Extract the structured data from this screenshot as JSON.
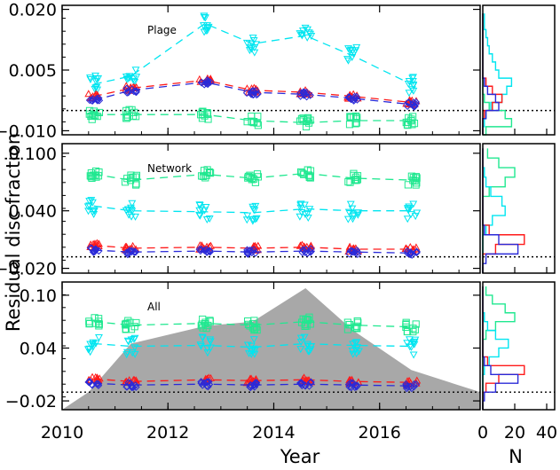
{
  "figure": {
    "ylabel": "Residual disc fraction",
    "xlabel": "Year",
    "hist_xlabel": "N",
    "x_ticks": [
      "2010",
      "2012",
      "2014",
      "2016"
    ],
    "hist_ticks": [
      "0",
      "20",
      "40"
    ]
  },
  "chart_data": [
    {
      "type": "scatter",
      "panel": "top",
      "label": "Plage",
      "title": "",
      "xlim": [
        2010,
        2017.9
      ],
      "ylim": [
        -0.011,
        0.021
      ],
      "yticks": [
        "0.020",
        "0.005",
        "−0.010"
      ],
      "ytick_values": [
        0.02,
        0.005,
        -0.01
      ],
      "reference_line": -0.005,
      "colors": {
        "cyan": "#00e5f0",
        "green": "#20e890",
        "red": "#ff1a1a",
        "blue": "#2a2ad8"
      },
      "series": [
        {
          "color": "cyan",
          "marker": "triangle-down",
          "x": [
            2010.6,
            2011.3,
            2012.7,
            2013.6,
            2014.6,
            2015.5,
            2016.6
          ],
          "y": [
            0.0015,
            0.0035,
            0.0165,
            0.0115,
            0.0135,
            0.0085,
            0.0015
          ]
        },
        {
          "color": "green",
          "marker": "square",
          "x": [
            2010.6,
            2011.3,
            2012.7,
            2013.6,
            2014.6,
            2015.5,
            2016.6
          ],
          "y": [
            -0.006,
            -0.006,
            -0.006,
            -0.0075,
            -0.008,
            -0.0075,
            -0.0075
          ]
        },
        {
          "color": "red",
          "marker": "triangle-up",
          "x": [
            2010.6,
            2011.3,
            2012.7,
            2013.6,
            2014.6,
            2015.5,
            2016.6
          ],
          "y": [
            -0.0015,
            0.0005,
            0.0025,
            0.0,
            -0.0005,
            -0.0015,
            -0.003
          ]
        },
        {
          "color": "blue",
          "marker": "diamond",
          "x": [
            2010.6,
            2011.3,
            2012.7,
            2013.6,
            2014.6,
            2015.5,
            2016.6
          ],
          "y": [
            -0.0025,
            0.0,
            0.002,
            -0.0005,
            -0.001,
            -0.002,
            -0.0035
          ]
        }
      ],
      "histogram": {
        "xlim": [
          0,
          45
        ],
        "bins": [
          -0.011,
          -0.009,
          -0.007,
          -0.005,
          -0.003,
          -0.001,
          0.001,
          0.003,
          0.005,
          0.007,
          0.009,
          0.011,
          0.013,
          0.015,
          0.017,
          0.019
        ],
        "series": [
          {
            "color": "green",
            "counts": [
              2,
              18,
              14,
              4,
              1,
              0,
              0,
              0,
              0,
              0,
              0,
              0,
              0,
              0,
              0
            ]
          },
          {
            "color": "cyan",
            "counts": [
              0,
              1,
              2,
              5,
              12,
              15,
              18,
              10,
              8,
              6,
              4,
              3,
              2,
              1,
              1
            ]
          },
          {
            "color": "red",
            "counts": [
              0,
              0,
              1,
              6,
              12,
              6,
              2,
              0,
              0,
              0,
              0,
              0,
              0,
              0,
              0
            ]
          },
          {
            "color": "blue",
            "counts": [
              0,
              0,
              2,
              10,
              8,
              3,
              1,
              0,
              0,
              0,
              0,
              0,
              0,
              0,
              0
            ]
          }
        ]
      }
    },
    {
      "type": "scatter",
      "panel": "middle",
      "label": "Network",
      "title": "",
      "xlim": [
        2010,
        2017.9
      ],
      "ylim": [
        -0.025,
        0.11
      ],
      "yticks": [
        "0.100",
        "0.040",
        "−0.020"
      ],
      "ytick_values": [
        0.1,
        0.04,
        -0.02
      ],
      "reference_line": -0.008,
      "colors": {
        "cyan": "#00e5f0",
        "green": "#20e890",
        "red": "#ff1a1a",
        "blue": "#2a2ad8"
      },
      "series": [
        {
          "color": "green",
          "marker": "square",
          "x": [
            2010.6,
            2011.3,
            2012.7,
            2013.6,
            2014.6,
            2015.5,
            2016.6
          ],
          "y": [
            0.078,
            0.072,
            0.078,
            0.074,
            0.079,
            0.074,
            0.072
          ]
        },
        {
          "color": "cyan",
          "marker": "triangle-down",
          "x": [
            2010.6,
            2011.3,
            2012.7,
            2013.6,
            2014.6,
            2015.5,
            2016.6
          ],
          "y": [
            0.045,
            0.04,
            0.039,
            0.038,
            0.042,
            0.04,
            0.04
          ]
        },
        {
          "color": "red",
          "marker": "triangle-up",
          "x": [
            2010.6,
            2011.3,
            2012.7,
            2013.6,
            2014.6,
            2015.5,
            2016.6
          ],
          "y": [
            0.004,
            0.001,
            0.002,
            0.001,
            0.002,
            0.0,
            0.0
          ]
        },
        {
          "color": "blue",
          "marker": "diamond",
          "x": [
            2010.6,
            2011.3,
            2012.7,
            2013.6,
            2014.6,
            2015.5,
            2016.6
          ],
          "y": [
            -0.001,
            -0.003,
            -0.002,
            -0.003,
            -0.002,
            -0.003,
            -0.004
          ]
        }
      ],
      "histogram": {
        "xlim": [
          0,
          45
        ],
        "bins": [
          -0.025,
          -0.015,
          -0.005,
          0.005,
          0.015,
          0.025,
          0.035,
          0.045,
          0.055,
          0.065,
          0.075,
          0.085,
          0.095,
          0.105
        ],
        "series": [
          {
            "color": "green",
            "counts": [
              0,
              0,
              0,
              0,
              0,
              0,
              0,
              0,
              4,
              14,
              20,
              10,
              3
            ]
          },
          {
            "color": "cyan",
            "counts": [
              0,
              0,
              0,
              0,
              2,
              6,
              14,
              12,
              5,
              2,
              1,
              0,
              0
            ]
          },
          {
            "color": "red",
            "counts": [
              0,
              0,
              8,
              26,
              4,
              0,
              0,
              0,
              0,
              0,
              0,
              0,
              0
            ]
          },
          {
            "color": "blue",
            "counts": [
              0,
              2,
              22,
              10,
              1,
              0,
              0,
              0,
              0,
              0,
              0,
              0,
              0
            ]
          }
        ]
      }
    },
    {
      "type": "scatter",
      "panel": "bottom",
      "label": "All",
      "title": "",
      "xlim": [
        2010,
        2017.9
      ],
      "ylim": [
        -0.03,
        0.115
      ],
      "yticks": [
        "0.10",
        "0.04",
        "−0.02"
      ],
      "ytick_values": [
        0.1,
        0.04,
        -0.02
      ],
      "reference_line": -0.01,
      "colors": {
        "cyan": "#00e5f0",
        "green": "#20e890",
        "red": "#ff1a1a",
        "blue": "#2a2ad8",
        "gray": "#a8a8a8"
      },
      "background_area": {
        "x": [
          2010.0,
          2010.5,
          2011.3,
          2012.7,
          2013.6,
          2014.6,
          2015.5,
          2016.6,
          2017.9
        ],
        "y": [
          -0.03,
          -0.01,
          0.045,
          0.065,
          0.07,
          0.108,
          0.06,
          0.015,
          -0.01
        ]
      },
      "series": [
        {
          "color": "green",
          "marker": "square",
          "x": [
            2010.6,
            2011.3,
            2012.7,
            2013.6,
            2014.6,
            2015.5,
            2016.6
          ],
          "y": [
            0.07,
            0.066,
            0.068,
            0.066,
            0.07,
            0.066,
            0.064
          ]
        },
        {
          "color": "cyan",
          "marker": "triangle-down",
          "x": [
            2010.6,
            2011.3,
            2012.7,
            2013.6,
            2014.6,
            2015.5,
            2016.6
          ],
          "y": [
            0.045,
            0.042,
            0.043,
            0.041,
            0.045,
            0.043,
            0.042
          ]
        },
        {
          "color": "red",
          "marker": "triangle-up",
          "x": [
            2010.6,
            2011.3,
            2012.7,
            2013.6,
            2014.6,
            2015.5,
            2016.6
          ],
          "y": [
            0.005,
            0.002,
            0.004,
            0.003,
            0.004,
            0.002,
            0.001
          ]
        },
        {
          "color": "blue",
          "marker": "diamond",
          "x": [
            2010.6,
            2011.3,
            2012.7,
            2013.6,
            2014.6,
            2015.5,
            2016.6
          ],
          "y": [
            0.0,
            -0.002,
            -0.001,
            -0.002,
            -0.001,
            -0.002,
            -0.003
          ]
        }
      ],
      "histogram": {
        "xlim": [
          0,
          45
        ],
        "bins": [
          -0.03,
          -0.02,
          -0.01,
          0.0,
          0.01,
          0.02,
          0.03,
          0.04,
          0.05,
          0.06,
          0.07,
          0.08,
          0.09,
          0.1,
          0.11
        ],
        "series": [
          {
            "color": "green",
            "counts": [
              0,
              0,
              0,
              0,
              0,
              0,
              0,
              0,
              2,
              8,
              20,
              14,
              6,
              2
            ]
          },
          {
            "color": "cyan",
            "counts": [
              0,
              0,
              0,
              0,
              1,
              4,
              10,
              16,
              8,
              3,
              1,
              0,
              0,
              0
            ]
          },
          {
            "color": "red",
            "counts": [
              0,
              0,
              2,
              10,
              26,
              3,
              0,
              0,
              0,
              0,
              0,
              0,
              0,
              0
            ]
          },
          {
            "color": "blue",
            "counts": [
              0,
              1,
              8,
              22,
              5,
              1,
              0,
              0,
              0,
              0,
              0,
              0,
              0,
              0
            ]
          }
        ]
      }
    }
  ]
}
